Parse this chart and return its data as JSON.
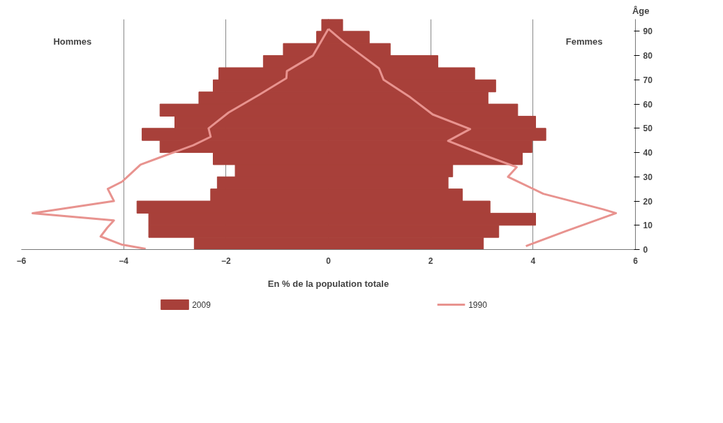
{
  "chart_data": {
    "type": "bar",
    "orientation": "horizontal",
    "xlabel": "En % de la population totale",
    "ylabel": "Âge",
    "x": [
      2.5,
      7.5,
      12.5,
      17.5,
      22.5,
      27.5,
      32.5,
      37.5,
      42.5,
      47.5,
      52.5,
      57.5,
      62.5,
      67.5,
      72.5,
      77.5,
      82.5,
      87.5,
      92.5
    ],
    "series": [
      {
        "name": "2009",
        "color": "#a8403a",
        "values": [
          -2.62,
          -3.51,
          -3.51,
          -3.74,
          -2.3,
          -2.17,
          -1.82,
          -2.25,
          -3.29,
          -3.64,
          -3.0,
          -3.29,
          -2.53,
          -2.25,
          -2.14,
          -1.27,
          -0.88,
          -0.23,
          -0.13
        ]
      },
      {
        "color": "#a8403a",
        "values": [
          3.03,
          3.33,
          4.05,
          3.16,
          2.62,
          2.34,
          2.43,
          3.79,
          3.98,
          4.25,
          4.05,
          3.7,
          3.12,
          3.27,
          2.86,
          2.14,
          1.21,
          0.8,
          0.28
        ]
      },
      {
        "name": "1990",
        "type": "line",
        "color": "#e8938f",
        "x": [
          0.3,
          2,
          5.4,
          9,
          12,
          15,
          20,
          25,
          28,
          35,
          38,
          43,
          46.5,
          50,
          56.5,
          64,
          70.7,
          73.6,
          80,
          91
        ],
        "values": [
          -3.57,
          -4.03,
          -4.45,
          -4.32,
          -4.19,
          -5.78,
          -4.19,
          -4.31,
          -4.03,
          -3.67,
          -3.29,
          -2.64,
          -2.3,
          -2.34,
          -1.95,
          -1.34,
          -0.82,
          -0.81,
          -0.3,
          0.0
        ]
      },
      {
        "type": "line",
        "color": "#e8938f",
        "x": [
          1.4,
          7.6,
          15,
          16.6,
          23,
          30,
          34,
          38,
          44.8,
          49.7,
          55.7,
          62.8,
          70,
          74.7,
          85.6,
          91
        ],
        "values": [
          3.86,
          4.64,
          5.62,
          5.37,
          4.2,
          3.51,
          3.68,
          3.16,
          2.34,
          2.77,
          2.04,
          1.6,
          1.08,
          0.99,
          0.3,
          0.0
        ]
      }
    ],
    "xlim": [
      -6,
      6
    ],
    "xticks": [
      -6,
      -4,
      -2,
      0,
      2,
      4,
      6
    ],
    "ylim": [
      0,
      95
    ],
    "yticks": [
      0,
      10,
      20,
      30,
      40,
      50,
      60,
      70,
      80,
      90
    ],
    "grid": "x",
    "legend": "bottom",
    "stacked": true,
    "annotations": [
      "Hommes",
      "Femmes"
    ]
  }
}
